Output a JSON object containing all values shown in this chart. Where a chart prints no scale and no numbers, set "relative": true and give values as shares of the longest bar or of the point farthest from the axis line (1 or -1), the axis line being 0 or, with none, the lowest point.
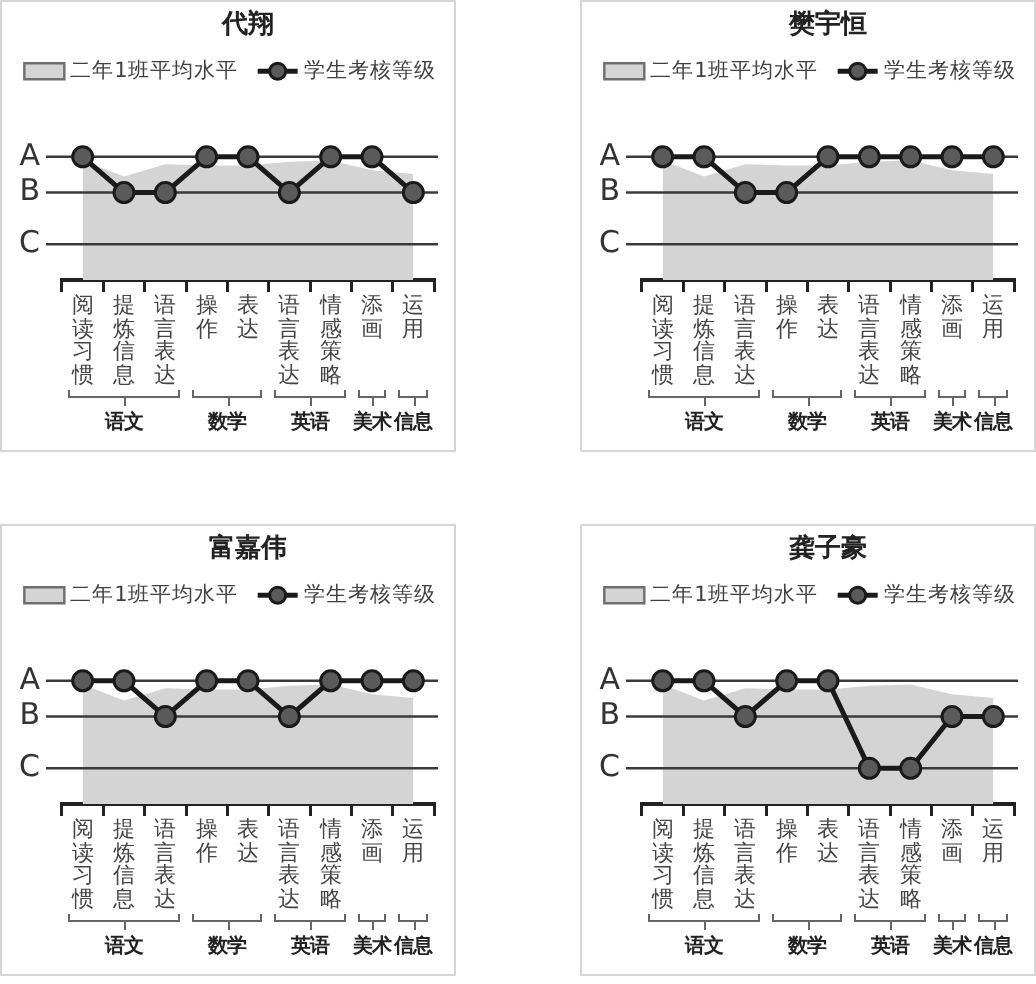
{
  "chart_data": [
    {
      "type": "line",
      "title": "代翔",
      "categories": [
        "阅读习惯",
        "提炼信息",
        "语言表达",
        "操作",
        "表达",
        "语言表达",
        "情感策略",
        "添画",
        "运用"
      ],
      "relative": true,
      "series": [
        {
          "name": "二年1班平均水平",
          "type": "area",
          "color": "#d4d4d4",
          "values": [
            0.97,
            0.84,
            0.94,
            0.93,
            0.93,
            0.96,
            0.97,
            0.89,
            0.86
          ]
        },
        {
          "name": "学生考核等级",
          "type": "line",
          "color": "#1a1a1a",
          "marker": "circle",
          "values": [
            1,
            0.71,
            0.71,
            1,
            1,
            0.71,
            1,
            1,
            0.71
          ]
        }
      ],
      "ref_lines": [
        {
          "axis": "y",
          "value": 1,
          "label": "A",
          "color": "#3a3a3a"
        },
        {
          "axis": "y",
          "value": 0.71,
          "label": "B",
          "color": "#3a3a3a"
        },
        {
          "axis": "y",
          "value": 0.29,
          "label": "C",
          "color": "#3a3a3a"
        }
      ],
      "legend": "top",
      "annotations": [
        "语文",
        "数学",
        "英语",
        "美术",
        "信息"
      ]
    },
    {
      "type": "line",
      "title": "樊宇恒",
      "categories": [
        "阅读习惯",
        "提炼信息",
        "语言表达",
        "操作",
        "表达",
        "语言表达",
        "情感策略",
        "添画",
        "运用"
      ],
      "relative": true,
      "series": [
        {
          "name": "二年1班平均水平",
          "type": "area",
          "color": "#d4d4d4",
          "values": [
            0.97,
            0.84,
            0.94,
            0.93,
            0.93,
            0.96,
            0.97,
            0.89,
            0.86
          ]
        },
        {
          "name": "学生考核等级",
          "type": "line",
          "color": "#1a1a1a",
          "marker": "circle",
          "values": [
            1,
            1,
            0.71,
            0.71,
            1,
            1,
            1,
            1,
            1
          ]
        }
      ],
      "ref_lines": [
        {
          "axis": "y",
          "value": 1,
          "label": "A",
          "color": "#3a3a3a"
        },
        {
          "axis": "y",
          "value": 0.71,
          "label": "B",
          "color": "#3a3a3a"
        },
        {
          "axis": "y",
          "value": 0.29,
          "label": "C",
          "color": "#3a3a3a"
        }
      ],
      "legend": "top",
      "annotations": [
        "语文",
        "数学",
        "英语",
        "美术",
        "信息"
      ]
    },
    {
      "type": "line",
      "title": "富嘉伟",
      "categories": [
        "阅读习惯",
        "提炼信息",
        "语言表达",
        "操作",
        "表达",
        "语言表达",
        "情感策略",
        "添画",
        "运用"
      ],
      "relative": true,
      "series": [
        {
          "name": "二年1班平均水平",
          "type": "area",
          "color": "#d4d4d4",
          "values": [
            0.97,
            0.84,
            0.94,
            0.93,
            0.93,
            0.96,
            0.97,
            0.89,
            0.86
          ]
        },
        {
          "name": "学生考核等级",
          "type": "line",
          "color": "#1a1a1a",
          "marker": "circle",
          "values": [
            1,
            1,
            0.71,
            1,
            1,
            0.71,
            1,
            1,
            1
          ]
        }
      ],
      "ref_lines": [
        {
          "axis": "y",
          "value": 1,
          "label": "A",
          "color": "#3a3a3a"
        },
        {
          "axis": "y",
          "value": 0.71,
          "label": "B",
          "color": "#3a3a3a"
        },
        {
          "axis": "y",
          "value": 0.29,
          "label": "C",
          "color": "#3a3a3a"
        }
      ],
      "legend": "top",
      "annotations": [
        "语文",
        "数学",
        "英语",
        "美术",
        "信息"
      ]
    },
    {
      "type": "line",
      "title": "龚子豪",
      "categories": [
        "阅读习惯",
        "提炼信息",
        "语言表达",
        "操作",
        "表达",
        "语言表达",
        "情感策略",
        "添画",
        "运用"
      ],
      "relative": true,
      "series": [
        {
          "name": "二年1班平均水平",
          "type": "area",
          "color": "#d4d4d4",
          "values": [
            0.97,
            0.84,
            0.94,
            0.93,
            0.93,
            0.96,
            0.97,
            0.89,
            0.86
          ]
        },
        {
          "name": "学生考核等级",
          "type": "line",
          "color": "#1a1a1a",
          "marker": "circle",
          "values": [
            1,
            1,
            0.71,
            1,
            1,
            0.29,
            0.29,
            0.71,
            0.71
          ]
        }
      ],
      "ref_lines": [
        {
          "axis": "y",
          "value": 1,
          "label": "A",
          "color": "#3a3a3a"
        },
        {
          "axis": "y",
          "value": 0.71,
          "label": "B",
          "color": "#3a3a3a"
        },
        {
          "axis": "y",
          "value": 0.29,
          "label": "C",
          "color": "#3a3a3a"
        }
      ],
      "legend": "top",
      "annotations": [
        "语文",
        "数学",
        "英语",
        "美术",
        "信息"
      ]
    }
  ]
}
